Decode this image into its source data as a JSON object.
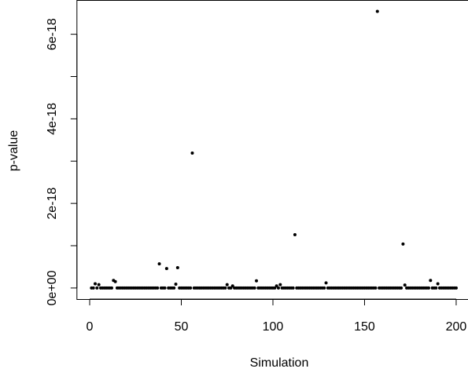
{
  "chart_data": {
    "type": "scatter",
    "x_label": "Simulation",
    "y_label": "p-value",
    "x": [
      1,
      2,
      3,
      4,
      5,
      6,
      7,
      8,
      9,
      10,
      11,
      12,
      13,
      14,
      15,
      16,
      17,
      18,
      19,
      20,
      21,
      22,
      23,
      24,
      25,
      26,
      27,
      28,
      29,
      30,
      31,
      32,
      33,
      34,
      35,
      36,
      37,
      38,
      39,
      40,
      41,
      42,
      43,
      44,
      45,
      46,
      47,
      48,
      49,
      50,
      51,
      52,
      53,
      54,
      55,
      56,
      57,
      58,
      59,
      60,
      61,
      62,
      63,
      64,
      65,
      66,
      67,
      68,
      69,
      70,
      71,
      72,
      73,
      74,
      75,
      76,
      77,
      78,
      79,
      80,
      81,
      82,
      83,
      84,
      85,
      86,
      87,
      88,
      89,
      90,
      91,
      92,
      93,
      94,
      95,
      96,
      97,
      98,
      99,
      100,
      101,
      102,
      103,
      104,
      105,
      106,
      107,
      108,
      109,
      110,
      111,
      112,
      113,
      114,
      115,
      116,
      117,
      118,
      119,
      120,
      121,
      122,
      123,
      124,
      125,
      126,
      127,
      128,
      129,
      130,
      131,
      132,
      133,
      134,
      135,
      136,
      137,
      138,
      139,
      140,
      141,
      142,
      143,
      144,
      145,
      146,
      147,
      148,
      149,
      150,
      151,
      152,
      153,
      154,
      155,
      156,
      157,
      158,
      159,
      160,
      161,
      162,
      163,
      164,
      165,
      166,
      167,
      168,
      169,
      170,
      171,
      172,
      173,
      174,
      175,
      176,
      177,
      178,
      179,
      180,
      181,
      182,
      183,
      184,
      185,
      186,
      187,
      188,
      189,
      190,
      191,
      192,
      193,
      194,
      195,
      196,
      197,
      198,
      199,
      200
    ],
    "values": [
      0,
      0,
      1e-19,
      0,
      8e-20,
      0,
      0,
      0,
      0,
      0,
      0,
      0,
      1.8e-19,
      1.5e-19,
      0,
      0,
      0,
      0,
      0,
      0,
      0,
      0,
      0,
      0,
      0,
      0,
      0,
      0,
      0,
      0,
      0,
      0,
      0,
      0,
      0,
      0,
      0,
      5.7e-19,
      0,
      0,
      0,
      4.6e-19,
      0,
      0,
      0,
      0,
      9e-20,
      4.8e-19,
      0,
      0,
      0,
      0,
      0,
      0,
      0,
      3.19e-18,
      0,
      0,
      0,
      0,
      0,
      0,
      0,
      0,
      0,
      0,
      0,
      0,
      0,
      0,
      0,
      0,
      0,
      0,
      8e-20,
      0,
      0,
      5e-20,
      0,
      0,
      0,
      0,
      0,
      0,
      0,
      0,
      0,
      0,
      0,
      0,
      1.7e-19,
      0,
      0,
      0,
      0,
      0,
      0,
      0,
      0,
      0,
      0,
      5e-20,
      0,
      8e-20,
      0,
      0,
      0,
      0,
      0,
      0,
      0,
      1.26e-18,
      0,
      0,
      0,
      0,
      0,
      0,
      0,
      0,
      0,
      0,
      0,
      0,
      0,
      0,
      0,
      0,
      1.2e-19,
      0,
      0,
      0,
      0,
      0,
      0,
      0,
      0,
      0,
      0,
      0,
      0,
      0,
      0,
      0,
      0,
      0,
      0,
      0,
      0,
      0,
      0,
      0,
      0,
      0,
      0,
      0,
      6.54e-18,
      0,
      0,
      0,
      0,
      0,
      0,
      0,
      0,
      0,
      0,
      0,
      0,
      0,
      1.04e-18,
      7e-20,
      0,
      0,
      0,
      0,
      0,
      0,
      0,
      0,
      0,
      0,
      0,
      0,
      0,
      1.8e-19,
      0,
      0,
      0,
      1e-19,
      0,
      0,
      0,
      0,
      0,
      0,
      0,
      0,
      0,
      0
    ],
    "color": "#000000",
    "xlim": [
      -6.96,
      207.96
    ],
    "xticks": [
      0,
      50,
      100,
      150,
      200
    ],
    "ylim": [
      -2.62e-19,
      6.81e-18
    ],
    "yticks": [
      {
        "value": 0,
        "label": "0e+00"
      },
      2e-18,
      4e-18,
      6e-18
    ],
    "minor_yticks": [
      1e-18,
      3e-18,
      5e-18
    ]
  }
}
